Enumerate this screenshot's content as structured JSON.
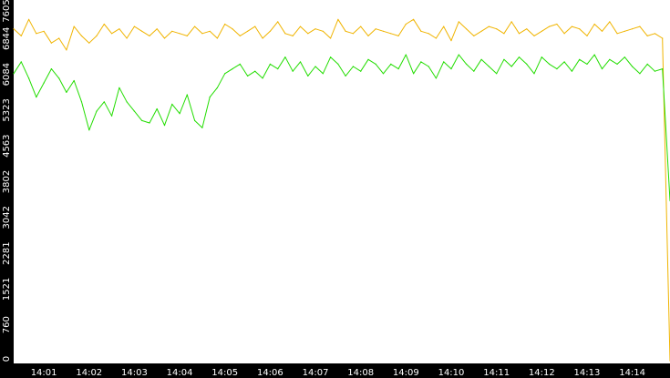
{
  "chart_data": {
    "type": "line",
    "title": "",
    "xlabel": "",
    "ylabel": "",
    "ylim": [
      0,
      7605
    ],
    "y_ticks": [
      "0",
      "760",
      "1521",
      "2281",
      "3042",
      "3802",
      "4563",
      "5323",
      "6084",
      "6844",
      "7605"
    ],
    "x_ticks": [
      "14:01",
      "14:02",
      "14:03",
      "14:04",
      "14:05",
      "14:06",
      "14:07",
      "14:08",
      "14:09",
      "14:10",
      "14:11",
      "14:12",
      "14:13",
      "14:14"
    ],
    "x_range": [
      "14:00:20",
      "14:14:50"
    ],
    "grid": false,
    "legend": "none",
    "colors": {
      "background": "#000000",
      "plot_area": "#ffffff",
      "text": "#ffffff"
    },
    "series": [
      {
        "color": "#f0b400",
        "x": [
          "14:00:20",
          "14:00:30",
          "14:00:40",
          "14:00:50",
          "14:01:00",
          "14:01:10",
          "14:01:20",
          "14:01:30",
          "14:01:40",
          "14:01:50",
          "14:02:00",
          "14:02:10",
          "14:02:20",
          "14:02:30",
          "14:02:40",
          "14:02:50",
          "14:03:00",
          "14:03:10",
          "14:03:20",
          "14:03:30",
          "14:03:40",
          "14:03:50",
          "14:04:00",
          "14:04:10",
          "14:04:20",
          "14:04:30",
          "14:04:40",
          "14:04:50",
          "14:05:00",
          "14:05:10",
          "14:05:20",
          "14:05:30",
          "14:05:40",
          "14:05:50",
          "14:06:00",
          "14:06:10",
          "14:06:20",
          "14:06:30",
          "14:06:40",
          "14:06:50",
          "14:07:00",
          "14:07:10",
          "14:07:20",
          "14:07:30",
          "14:07:40",
          "14:07:50",
          "14:08:00",
          "14:08:10",
          "14:08:20",
          "14:08:30",
          "14:08:40",
          "14:08:50",
          "14:09:00",
          "14:09:10",
          "14:09:20",
          "14:09:30",
          "14:09:40",
          "14:09:50",
          "14:10:00",
          "14:10:10",
          "14:10:20",
          "14:10:30",
          "14:10:40",
          "14:10:50",
          "14:11:00",
          "14:11:10",
          "14:11:20",
          "14:11:30",
          "14:11:40",
          "14:11:50",
          "14:12:00",
          "14:12:10",
          "14:12:20",
          "14:12:30",
          "14:12:40",
          "14:12:50",
          "14:13:00",
          "14:13:10",
          "14:13:20",
          "14:13:30",
          "14:13:40",
          "14:13:50",
          "14:14:00",
          "14:14:10",
          "14:14:20",
          "14:14:30",
          "14:14:40",
          "14:14:50"
        ],
        "values": [
          7050,
          6900,
          7250,
          6950,
          7000,
          6750,
          6850,
          6600,
          7100,
          6900,
          6750,
          6900,
          7150,
          6950,
          7050,
          6850,
          7100,
          7000,
          6900,
          7050,
          6850,
          7000,
          6950,
          6900,
          7100,
          6950,
          7000,
          6850,
          7150,
          7050,
          6900,
          7000,
          7100,
          6850,
          7000,
          7200,
          6950,
          6900,
          7100,
          6950,
          7050,
          7000,
          6850,
          7250,
          7000,
          6950,
          7100,
          6900,
          7050,
          7000,
          6950,
          6900,
          7150,
          7250,
          7000,
          6950,
          6850,
          7100,
          6800,
          7200,
          7050,
          6900,
          7000,
          7100,
          7050,
          6950,
          7200,
          6950,
          7050,
          6900,
          7000,
          7100,
          7150,
          6950,
          7100,
          7050,
          6900,
          7150,
          7000,
          7200,
          6950,
          7000,
          7050,
          7100,
          6900,
          6950,
          6850,
          0
        ]
      },
      {
        "color": "#22dd00",
        "x": [
          "14:00:20",
          "14:00:30",
          "14:00:40",
          "14:00:50",
          "14:01:00",
          "14:01:10",
          "14:01:20",
          "14:01:30",
          "14:01:40",
          "14:01:50",
          "14:02:00",
          "14:02:10",
          "14:02:20",
          "14:02:30",
          "14:02:40",
          "14:02:50",
          "14:03:00",
          "14:03:10",
          "14:03:20",
          "14:03:30",
          "14:03:40",
          "14:03:50",
          "14:04:00",
          "14:04:10",
          "14:04:20",
          "14:04:30",
          "14:04:40",
          "14:04:50",
          "14:05:00",
          "14:05:10",
          "14:05:20",
          "14:05:30",
          "14:05:40",
          "14:05:50",
          "14:06:00",
          "14:06:10",
          "14:06:20",
          "14:06:30",
          "14:06:40",
          "14:06:50",
          "14:07:00",
          "14:07:10",
          "14:07:20",
          "14:07:30",
          "14:07:40",
          "14:07:50",
          "14:08:00",
          "14:08:10",
          "14:08:20",
          "14:08:30",
          "14:08:40",
          "14:08:50",
          "14:09:00",
          "14:09:10",
          "14:09:20",
          "14:09:30",
          "14:09:40",
          "14:09:50",
          "14:10:00",
          "14:10:10",
          "14:10:20",
          "14:10:30",
          "14:10:40",
          "14:10:50",
          "14:11:00",
          "14:11:10",
          "14:11:20",
          "14:11:30",
          "14:11:40",
          "14:11:50",
          "14:12:00",
          "14:12:10",
          "14:12:20",
          "14:12:30",
          "14:12:40",
          "14:12:50",
          "14:13:00",
          "14:13:10",
          "14:13:20",
          "14:13:30",
          "14:13:40",
          "14:13:50",
          "14:14:00",
          "14:14:10",
          "14:14:20",
          "14:14:30",
          "14:14:40",
          "14:14:50"
        ],
        "values": [
          6100,
          6350,
          6000,
          5600,
          5900,
          6200,
          6000,
          5700,
          5950,
          5500,
          4900,
          5300,
          5500,
          5200,
          5800,
          5500,
          5300,
          5100,
          5050,
          5350,
          5000,
          5450,
          5250,
          5650,
          5100,
          4950,
          5600,
          5800,
          6100,
          6200,
          6300,
          6050,
          6150,
          6000,
          6300,
          6200,
          6450,
          6150,
          6350,
          6050,
          6250,
          6100,
          6450,
          6300,
          6050,
          6250,
          6150,
          6400,
          6300,
          6100,
          6300,
          6200,
          6500,
          6100,
          6350,
          6250,
          6000,
          6350,
          6200,
          6500,
          6300,
          6150,
          6400,
          6250,
          6100,
          6400,
          6250,
          6450,
          6300,
          6100,
          6450,
          6300,
          6200,
          6350,
          6150,
          6400,
          6300,
          6500,
          6200,
          6400,
          6300,
          6450,
          6250,
          6100,
          6300,
          6150,
          6200,
          3400
        ]
      }
    ]
  }
}
